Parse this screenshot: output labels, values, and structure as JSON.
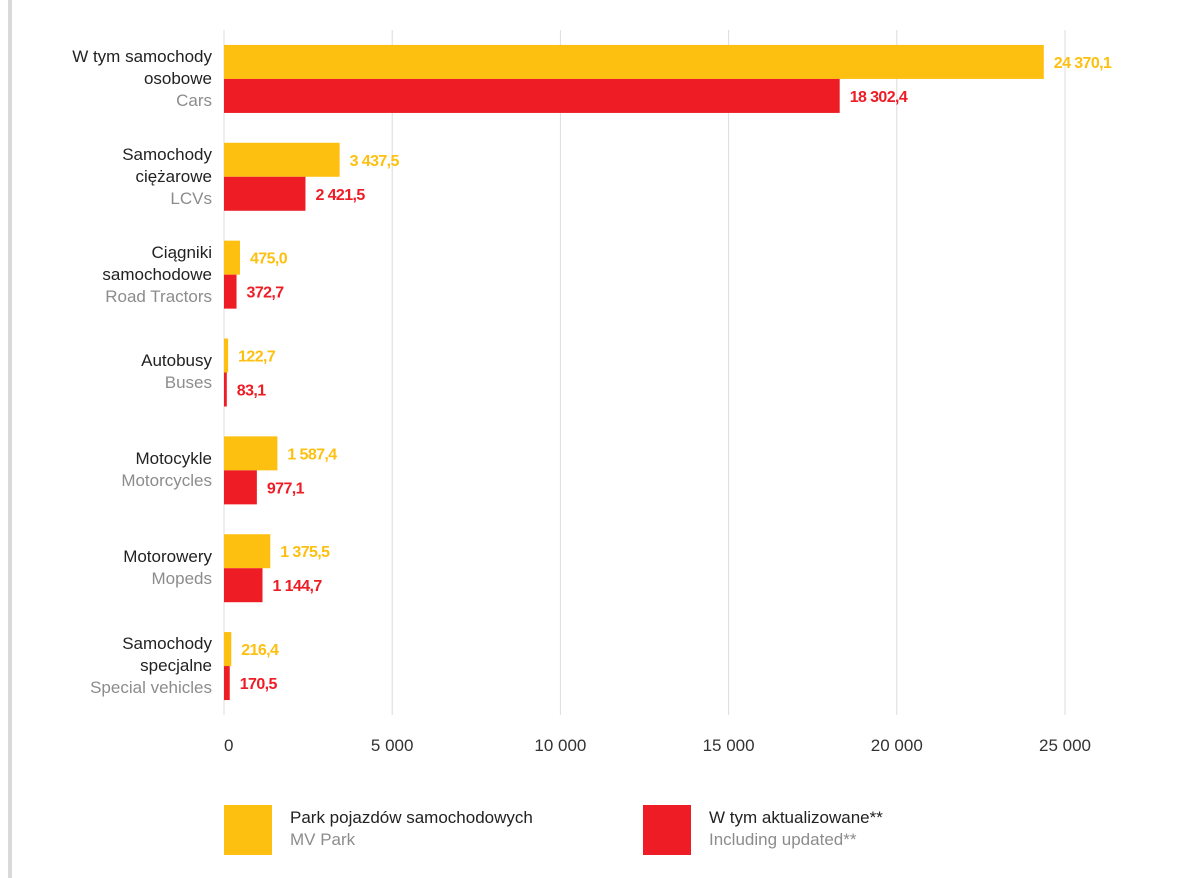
{
  "chart_data": {
    "type": "bar",
    "orientation": "horizontal",
    "categories": [
      "W tym samochody\nosobowe",
      "Samochody\nciężarowe",
      "Ciągniki\nsamochodowe",
      "Autobusy",
      "Motocykle",
      "Motorowery",
      "Samochody\nspecjalne"
    ],
    "categories_en": [
      "Cars",
      "LCVs",
      "Road Tractors",
      "Buses",
      "Motorcycles",
      "Mopeds",
      "Special vehicles"
    ],
    "series": [
      {
        "name": "Park pojazdów samochodowych",
        "name_en": "MV Park",
        "color": "#fdc010",
        "values": [
          24370.1,
          3437.5,
          475.0,
          122.7,
          1587.4,
          1375.5,
          216.4
        ],
        "value_labels": [
          "24 370,1",
          "3 437,5",
          "475,0",
          "122,7",
          "1 587,4",
          "1 375,5",
          "216,4"
        ]
      },
      {
        "name": "W tym aktualizowane**",
        "name_en": "Including updated**",
        "color": "#ee1c25",
        "values": [
          18302.4,
          2421.5,
          372.7,
          83.1,
          977.1,
          1144.7,
          170.5
        ],
        "value_labels": [
          "18 302,4",
          "2 421,5",
          "372,7",
          "83,1",
          "977,1",
          "1 144,7",
          "170,5"
        ]
      }
    ],
    "xlim": [
      0,
      25000
    ],
    "xticks": [
      0,
      {
        "value": 5000,
        "label": "5 000"
      },
      {
        "value": 10000,
        "label": "10 000"
      },
      {
        "value": 15000,
        "label": "15 000"
      },
      {
        "value": 20000,
        "label": "20 000"
      },
      {
        "value": 25000,
        "label": "25 000"
      }
    ],
    "grid": true,
    "legend": "bottom"
  }
}
